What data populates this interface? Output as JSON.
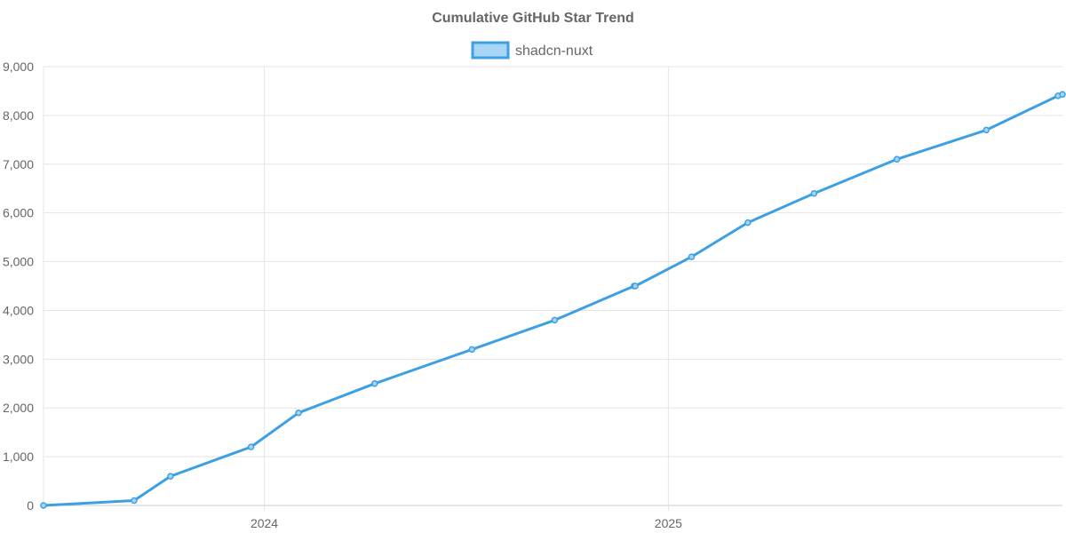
{
  "chart_data": {
    "type": "line",
    "title": "Cumulative GitHub Star Trend",
    "xlabel": "",
    "ylabel": "",
    "ylim": [
      0,
      9000
    ],
    "xlim": [
      "2023-06-15",
      "2025-12-24"
    ],
    "y_ticks": [
      0,
      1000,
      2000,
      3000,
      4000,
      5000,
      6000,
      7000,
      8000,
      9000
    ],
    "y_tick_labels": [
      "0",
      "1,000",
      "2,000",
      "3,000",
      "4,000",
      "5,000",
      "6,000",
      "7,000",
      "8,000",
      "9,000"
    ],
    "x_ticks": [
      "2024-01-01",
      "2025-01-01"
    ],
    "x_tick_labels": [
      "2024",
      "2025"
    ],
    "grid": true,
    "legend_position": "top-center",
    "series": [
      {
        "name": "shadcn-nuxt",
        "color": "#3ea0e4",
        "fill_color": "#a8d4f5",
        "points": [
          {
            "x": "2023-06-15",
            "y": 0
          },
          {
            "x": "2023-09-05",
            "y": 100
          },
          {
            "x": "2023-10-08",
            "y": 600
          },
          {
            "x": "2023-12-20",
            "y": 1200
          },
          {
            "x": "2024-02-01",
            "y": 1900
          },
          {
            "x": "2024-04-10",
            "y": 2500
          },
          {
            "x": "2024-07-07",
            "y": 3200
          },
          {
            "x": "2024-09-20",
            "y": 3800
          },
          {
            "x": "2024-12-01",
            "y": 4500
          },
          {
            "x": "2024-12-02",
            "y": 4500
          },
          {
            "x": "2025-01-22",
            "y": 5100
          },
          {
            "x": "2025-03-14",
            "y": 5800
          },
          {
            "x": "2025-05-13",
            "y": 6400
          },
          {
            "x": "2025-07-27",
            "y": 7100
          },
          {
            "x": "2025-10-16",
            "y": 7700
          },
          {
            "x": "2025-12-20",
            "y": 8400
          },
          {
            "x": "2025-12-24",
            "y": 8430
          }
        ]
      }
    ]
  }
}
